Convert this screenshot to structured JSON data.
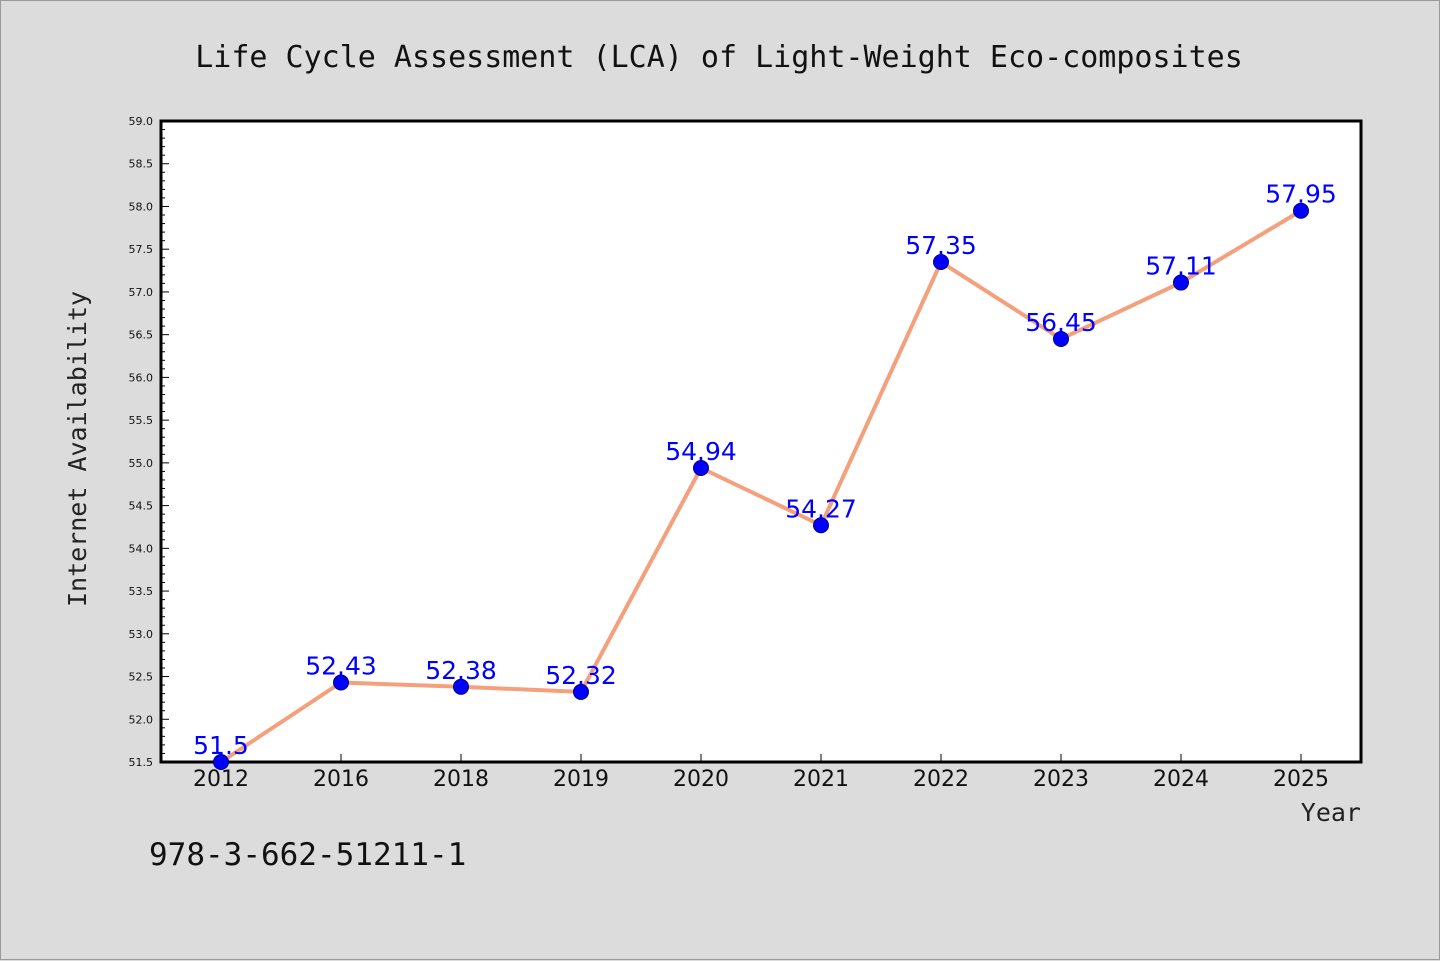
{
  "chart_data": {
    "type": "line",
    "title": "Life Cycle Assessment (LCA) of Light-Weight Eco-composites",
    "xlabel": "Year",
    "ylabel": "Internet Availability",
    "categories": [
      "2012",
      "2016",
      "2018",
      "2019",
      "2020",
      "2021",
      "2022",
      "2023",
      "2024",
      "2025"
    ],
    "series": [
      {
        "values": [
          51.5,
          52.43,
          52.38,
          52.32,
          54.94,
          54.27,
          57.35,
          56.45,
          57.11,
          57.95
        ],
        "labels": [
          "51.5",
          "52.43",
          "52.38",
          "52.32",
          "54.94",
          "54.27",
          "57.35",
          "56.45",
          "57.11",
          "57.95"
        ]
      }
    ],
    "ylim": [
      51.5,
      59.0
    ],
    "yticks": [
      "51.5",
      "52.0",
      "52.5",
      "53.0",
      "53.5",
      "54.0",
      "54.5",
      "55.0",
      "55.5",
      "56.0",
      "56.5",
      "57.0",
      "57.5",
      "58.0",
      "58.5",
      "59.0"
    ],
    "grid": false,
    "legend": "none",
    "colors": {
      "line": "#f4a07c",
      "marker": "#0000ff",
      "marker_edge": "#000080",
      "data_label": "#0000ff",
      "background": "#dcdcdc",
      "plot_area": "#ffffff"
    }
  },
  "footnote": "978-3-662-51211-1"
}
